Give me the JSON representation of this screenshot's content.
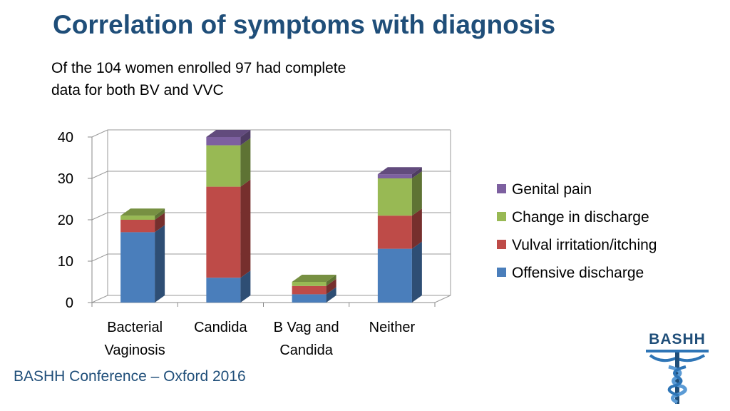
{
  "slide": {
    "title": "Correlation of symptoms with diagnosis",
    "subtitle_lines": [
      "Of the 104 women enrolled 97 had complete",
      "data for both BV and VVC"
    ],
    "footer": "BASHH Conference – Oxford 2016",
    "logo_text": "BASHH"
  },
  "chart_data": {
    "type": "bar",
    "stacked": true,
    "style": "3d",
    "categories": [
      [
        "Bacterial",
        "Vaginosis"
      ],
      [
        "Candida"
      ],
      [
        "B Vag and",
        "Candida"
      ],
      [
        "Neither"
      ]
    ],
    "series": [
      {
        "name": "Offensive discharge",
        "color": "#4a7ebb",
        "values": [
          17,
          6,
          2,
          13
        ]
      },
      {
        "name": "Vulval irritation/itching",
        "color": "#be4b48",
        "values": [
          3,
          22,
          2,
          8
        ]
      },
      {
        "name": "Change in discharge",
        "color": "#98b954",
        "values": [
          1,
          10,
          1,
          9
        ]
      },
      {
        "name": "Genital pain",
        "color": "#7d60a0",
        "values": [
          0,
          2,
          0,
          1
        ]
      }
    ],
    "title": "",
    "xlabel": "",
    "ylabel": "",
    "ylim": [
      0,
      40
    ],
    "yticks": [
      0,
      10,
      20,
      30,
      40
    ],
    "grid": true,
    "legend": "right"
  }
}
